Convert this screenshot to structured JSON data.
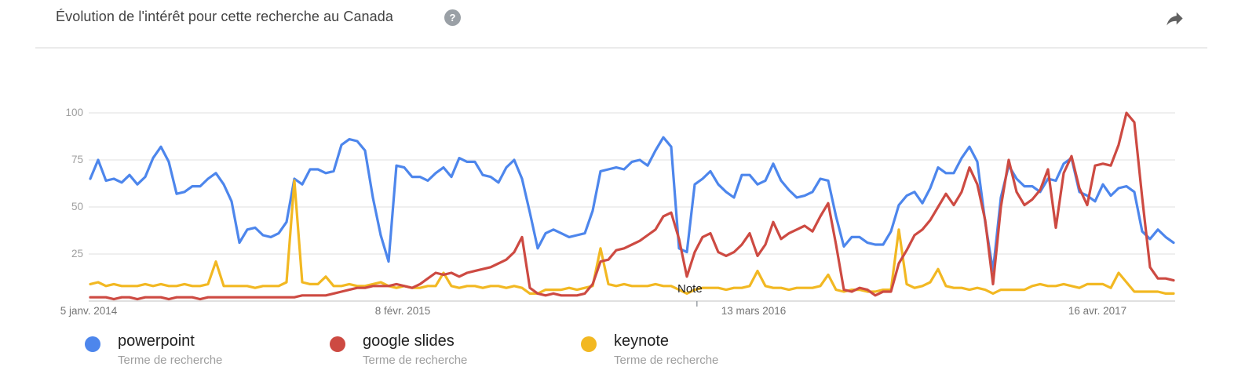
{
  "header": {
    "title": "Évolution de l'intérêt pour cette recherche au Canada",
    "help_glyph": "?"
  },
  "chart_data": {
    "type": "line",
    "title": "Évolution de l'intérêt pour cette recherche au Canada",
    "ylim": [
      0,
      100
    ],
    "y_ticks": [
      100,
      75,
      50,
      25
    ],
    "x_ticks": [
      "5 janv. 2014",
      "8 févr. 2015",
      "13 mars 2016",
      "16 avr. 2017"
    ],
    "note_label": "Note",
    "note_x_frac": 0.56,
    "grid": "horizontal-only",
    "legend_position": "bottom",
    "axis_color": "#d6d6d6",
    "grid_color": "#eaeaea",
    "series": [
      {
        "name": "powerpoint",
        "color": "#4d86ec",
        "values": [
          65,
          75,
          64,
          65,
          63,
          67,
          62,
          66,
          76,
          82,
          74,
          57,
          58,
          61,
          61,
          65,
          68,
          62,
          53,
          31,
          38,
          39,
          35,
          34,
          36,
          42,
          65,
          62,
          70,
          70,
          68,
          69,
          83,
          86,
          85,
          80,
          55,
          35,
          21,
          72,
          71,
          66,
          66,
          64,
          68,
          71,
          66,
          76,
          74,
          74,
          67,
          66,
          63,
          71,
          75,
          65,
          47,
          28,
          36,
          38,
          36,
          34,
          35,
          36,
          48,
          69,
          70,
          71,
          70,
          74,
          75,
          72,
          80,
          87,
          82,
          28,
          26,
          62,
          65,
          69,
          62,
          58,
          55,
          67,
          67,
          62,
          64,
          73,
          64,
          59,
          55,
          56,
          58,
          65,
          64,
          45,
          29,
          34,
          34,
          31,
          30,
          30,
          37,
          51,
          56,
          58,
          52,
          60,
          71,
          68,
          68,
          76,
          82,
          74,
          42,
          16,
          55,
          72,
          65,
          61,
          61,
          58,
          65,
          64,
          73,
          76,
          58,
          56,
          53,
          62,
          56,
          60,
          61,
          58,
          37,
          33,
          38,
          34,
          31
        ]
      },
      {
        "name": "google slides",
        "color": "#cd4a42",
        "values": [
          2,
          2,
          2,
          1,
          2,
          2,
          1,
          2,
          2,
          2,
          1,
          2,
          2,
          2,
          1,
          2,
          2,
          2,
          2,
          2,
          2,
          2,
          2,
          2,
          2,
          2,
          2,
          3,
          3,
          3,
          3,
          4,
          5,
          6,
          7,
          7,
          8,
          8,
          8,
          9,
          8,
          7,
          9,
          12,
          15,
          14,
          15,
          13,
          15,
          16,
          17,
          18,
          20,
          22,
          26,
          34,
          7,
          4,
          3,
          4,
          3,
          3,
          3,
          4,
          9,
          21,
          22,
          27,
          28,
          30,
          32,
          35,
          38,
          45,
          47,
          33,
          13,
          26,
          34,
          36,
          26,
          24,
          26,
          30,
          36,
          24,
          30,
          42,
          33,
          36,
          38,
          40,
          37,
          45,
          52,
          30,
          6,
          5,
          7,
          6,
          3,
          5,
          5,
          20,
          27,
          35,
          38,
          43,
          50,
          57,
          51,
          58,
          71,
          62,
          43,
          9,
          50,
          75,
          58,
          51,
          54,
          59,
          70,
          39,
          68,
          77,
          60,
          51,
          72,
          73,
          72,
          83,
          100,
          95,
          55,
          18,
          12,
          12,
          11
        ]
      },
      {
        "name": "keynote",
        "color": "#f2b822",
        "values": [
          9,
          10,
          8,
          9,
          8,
          8,
          8,
          9,
          8,
          9,
          8,
          8,
          9,
          8,
          8,
          9,
          21,
          8,
          8,
          8,
          8,
          7,
          8,
          8,
          8,
          10,
          64,
          10,
          9,
          9,
          13,
          8,
          8,
          9,
          8,
          8,
          9,
          10,
          8,
          7,
          8,
          7,
          7,
          8,
          8,
          15,
          8,
          7,
          8,
          8,
          7,
          8,
          8,
          7,
          8,
          7,
          4,
          4,
          6,
          6,
          6,
          7,
          6,
          7,
          8,
          28,
          9,
          8,
          9,
          8,
          8,
          8,
          9,
          8,
          8,
          6,
          4,
          6,
          7,
          7,
          7,
          6,
          7,
          7,
          8,
          16,
          8,
          7,
          7,
          6,
          7,
          7,
          7,
          8,
          14,
          6,
          5,
          6,
          6,
          5,
          5,
          6,
          6,
          38,
          9,
          7,
          8,
          10,
          17,
          8,
          7,
          7,
          6,
          7,
          6,
          4,
          6,
          6,
          6,
          6,
          8,
          9,
          8,
          8,
          9,
          8,
          7,
          9,
          9,
          9,
          7,
          15,
          10,
          5,
          5,
          5,
          5,
          4,
          4
        ]
      }
    ]
  },
  "legend": {
    "items": [
      {
        "term": "powerpoint",
        "subtitle": "Terme de recherche"
      },
      {
        "term": "google slides",
        "subtitle": "Terme de recherche"
      },
      {
        "term": "keynote",
        "subtitle": "Terme de recherche"
      }
    ]
  }
}
